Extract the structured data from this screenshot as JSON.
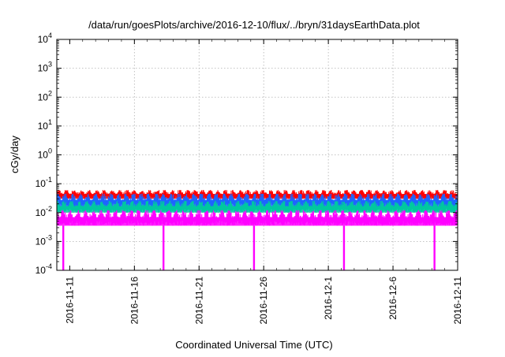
{
  "chart_data": {
    "type": "line",
    "title": "/data/run/goesPlots/archive/2016-12-10/flux/../bryn/31daysEarthData.plot",
    "xlabel": "Coordinated Universal Time (UTC)",
    "ylabel": "cGy/day",
    "yscale": "log",
    "ylim": [
      0.0001,
      10000
    ],
    "xlim": [
      "2016-11-10",
      "2016-12-11"
    ],
    "grid": true,
    "x_ticks": [
      "2016-11-11",
      "2016-11-16",
      "2016-11-21",
      "2016-11-26",
      "2016-12-1",
      "2016-12-6",
      "2016-12-11"
    ],
    "y_ticks": [
      {
        "value": 0.0001,
        "base": "10",
        "exp": "-4"
      },
      {
        "value": 0.001,
        "base": "10",
        "exp": "-3"
      },
      {
        "value": 0.01,
        "base": "10",
        "exp": "-2"
      },
      {
        "value": 0.1,
        "base": "10",
        "exp": "-1"
      },
      {
        "value": 1,
        "base": "10",
        "exp": "0"
      },
      {
        "value": 10,
        "base": "10",
        "exp": "1"
      },
      {
        "value": 100,
        "base": "10",
        "exp": "2"
      },
      {
        "value": 1000,
        "base": "10",
        "exp": "3"
      },
      {
        "value": 10000,
        "base": "10",
        "exp": "4"
      }
    ],
    "series": [
      {
        "color": "#ff0000",
        "typical_min": 0.03,
        "typical_max": 0.06
      },
      {
        "color": "#1e64ff",
        "typical_min": 0.015,
        "typical_max": 0.045
      },
      {
        "color": "#00c8a0",
        "typical_min": 0.01,
        "typical_max": 0.025
      },
      {
        "color": "#ff00ff",
        "typical_min": 0.0035,
        "typical_max": 0.012,
        "dips": [
          {
            "x": "2016-11-10T12:00",
            "y": 0.0001
          },
          {
            "x": "2016-11-18T06:00",
            "y": 0.0001
          },
          {
            "x": "2016-11-25T06:00",
            "y": 0.0001
          },
          {
            "x": "2016-12-02T05:00",
            "y": 0.0001
          },
          {
            "x": "2016-12-09T05:00",
            "y": 0.0001
          }
        ]
      }
    ]
  }
}
